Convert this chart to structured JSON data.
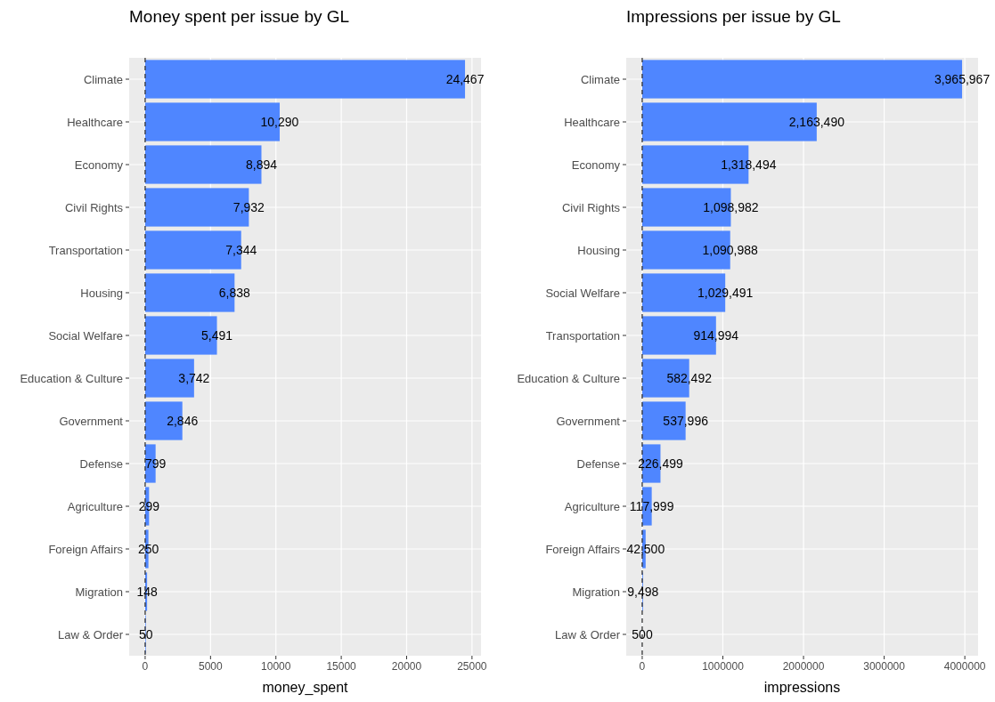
{
  "chart_data": [
    {
      "type": "bar",
      "orientation": "horizontal",
      "title": "Money spent per issue by GL",
      "xlabel": "money_spent",
      "categories": [
        "Climate",
        "Healthcare",
        "Economy",
        "Civil Rights",
        "Transportation",
        "Housing",
        "Social Welfare",
        "Education & Culture",
        "Government",
        "Defense",
        "Agriculture",
        "Foreign Affairs",
        "Migration",
        "Law & Order"
      ],
      "values": [
        24467,
        10290,
        8894,
        7932,
        7344,
        6838,
        5491,
        3742,
        2846,
        799,
        299,
        250,
        148,
        50
      ],
      "value_labels": [
        "24,467",
        "10,290",
        "8,894",
        "7,932",
        "7,344",
        "6,838",
        "5,491",
        "3,742",
        "2,846",
        "799",
        "299",
        "250",
        "148",
        "50"
      ],
      "color": "#4f86ff",
      "xlim": [
        -1223,
        25690
      ],
      "xticks": [
        0,
        5000,
        10000,
        15000,
        20000,
        25000
      ],
      "grid": true,
      "ref_lines": [
        {
          "axis": "x",
          "value": 0,
          "color": "#333333",
          "line_style": "dashed"
        }
      ]
    },
    {
      "type": "bar",
      "orientation": "horizontal",
      "title": "Impressions per issue by GL",
      "xlabel": "impressions",
      "categories": [
        "Climate",
        "Healthcare",
        "Economy",
        "Civil Rights",
        "Housing",
        "Social Welfare",
        "Transportation",
        "Education & Culture",
        "Government",
        "Defense",
        "Agriculture",
        "Foreign Affairs",
        "Migration",
        "Law & Order"
      ],
      "values": [
        3965967,
        2163490,
        1318494,
        1098982,
        1090988,
        1029491,
        914994,
        582492,
        537996,
        226499,
        117999,
        42500,
        9498,
        500
      ],
      "value_labels": [
        "3,965,967",
        "2,163,490",
        "1,318,494",
        "1,098,982",
        "1,090,988",
        "1,029,491",
        "914,994",
        "582,492",
        "537,996",
        "226,499",
        "117,999",
        "42,500",
        "9,498",
        "500"
      ],
      "color": "#4f86ff",
      "xlim": [
        -198298,
        4164265
      ],
      "xticks": [
        0,
        1000000,
        2000000,
        3000000,
        4000000
      ],
      "grid": true,
      "ref_lines": [
        {
          "axis": "x",
          "value": 0,
          "color": "#333333",
          "line_style": "dashed"
        }
      ]
    }
  ]
}
